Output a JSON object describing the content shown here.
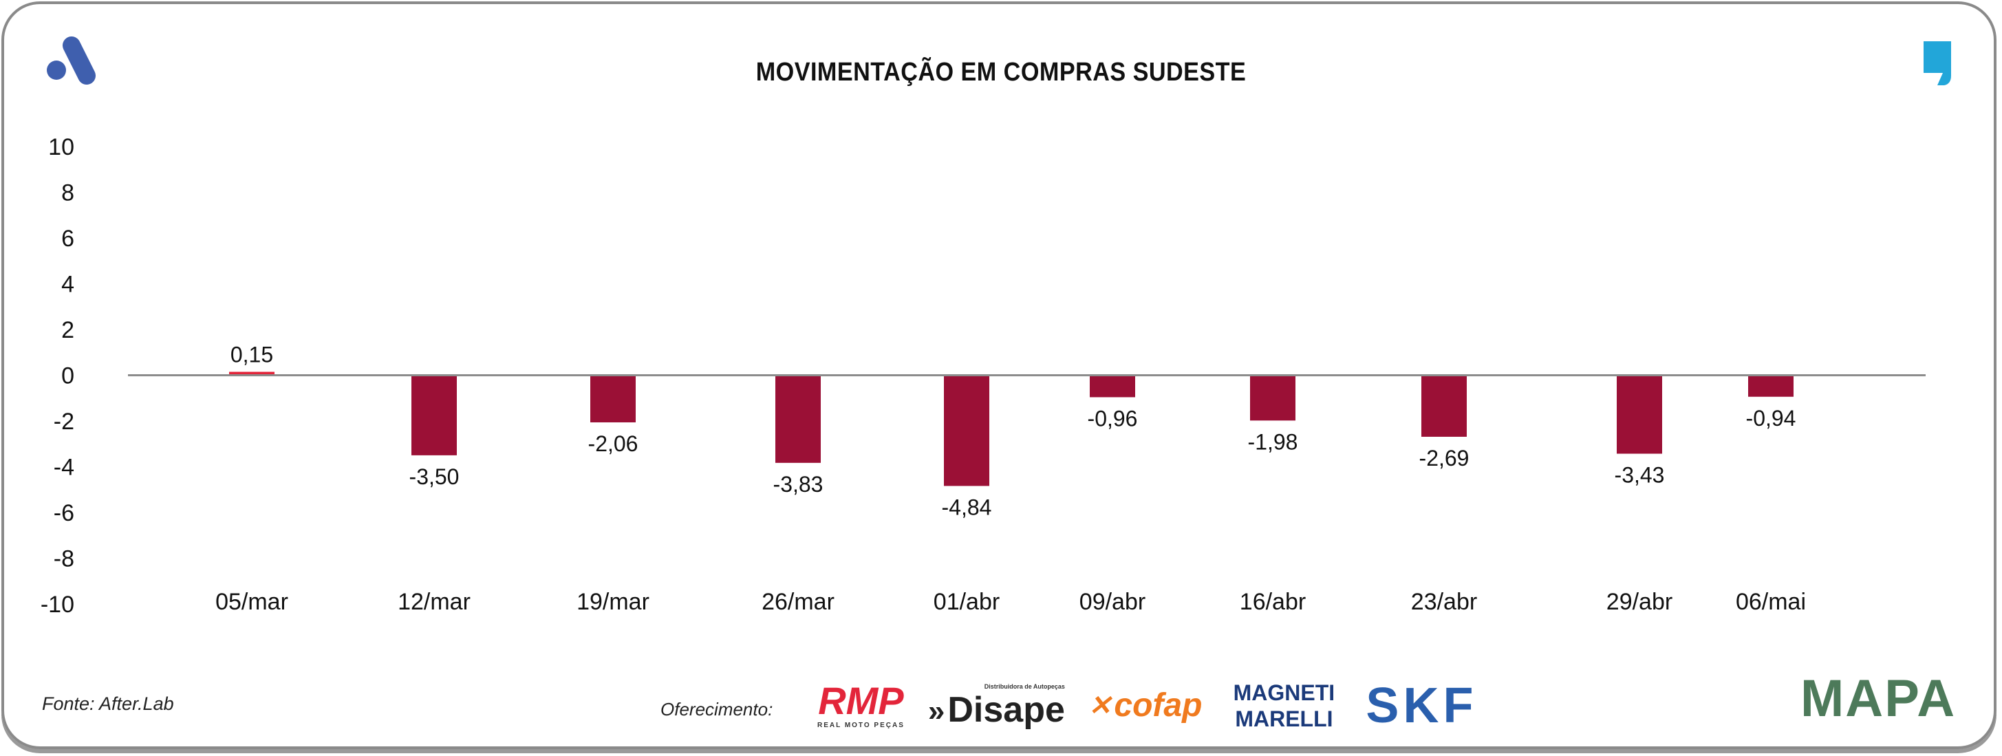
{
  "header": {
    "title": "MOVIMENTAÇÃO EM COMPRAS SUDESTE"
  },
  "footer": {
    "source": "Fonte: After.Lab",
    "sponsor_label": "Oferecimento:",
    "sponsors": [
      "RMP",
      "Disape",
      "cofap",
      "MAGNETI MARELLI",
      "SKF",
      "MAPA"
    ],
    "rmp_sub": "REAL MOTO PEÇAS",
    "disape_sub": "Distribuidora de Autopeças"
  },
  "colors": {
    "negative": "#9b1036",
    "positive": "#e3253a",
    "axis": "#8c8c8c",
    "logo_blue": "#3f5fae",
    "comma_blue": "#22a6d9"
  },
  "chart_data": {
    "type": "bar",
    "title": "MOVIMENTAÇÃO EM COMPRAS SUDESTE",
    "categories": [
      "05/mar",
      "12/mar",
      "19/mar",
      "26/mar",
      "01/abr",
      "09/abr",
      "16/abr",
      "23/abr",
      "29/abr",
      "06/mai"
    ],
    "values": [
      0.15,
      -3.5,
      -2.06,
      -3.83,
      -4.84,
      -0.96,
      -1.98,
      -2.69,
      -3.43,
      -0.94
    ],
    "labels": [
      "0,15",
      "-3,50",
      "-2,06",
      "-3,83",
      "-4,84",
      "-0,96",
      "-1,98",
      "-2,69",
      "-3,43",
      "-0,94"
    ],
    "yticks": [
      "10",
      "8",
      "6",
      "4",
      "2",
      "0",
      "-2",
      "-4",
      "-6",
      "-8",
      "-10"
    ],
    "ylim": [
      -10,
      10
    ],
    "xlabel": "",
    "ylabel": "",
    "grid": false,
    "legend": "none"
  }
}
